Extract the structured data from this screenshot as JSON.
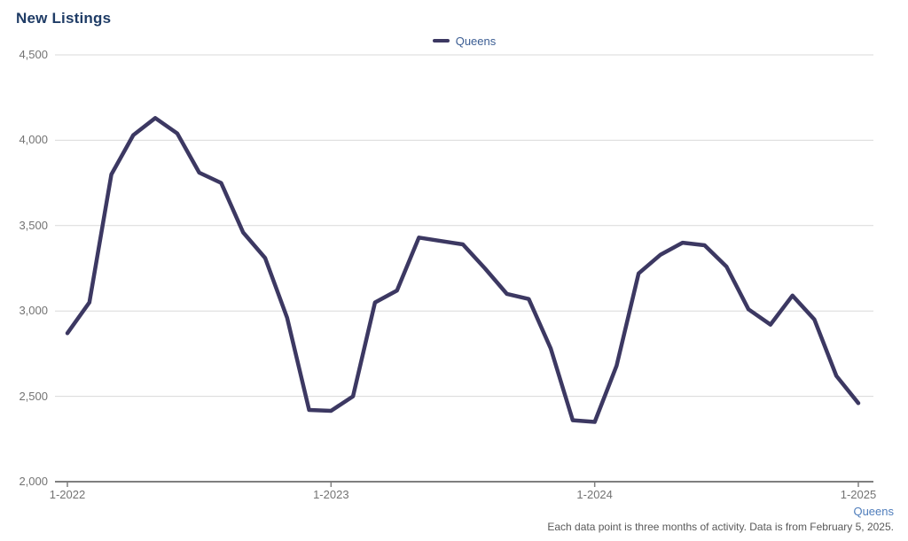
{
  "page": {
    "title": "New Listings"
  },
  "legend": {
    "items": [
      {
        "label": "Queens",
        "swatch_color": "#3c3862"
      }
    ]
  },
  "footer": {
    "series_link": "Queens",
    "note": "Each data point is three months of activity. Data is from February 5, 2025."
  },
  "colors": {
    "line": "#3c3862",
    "title_text": "#1f3c66",
    "legend_text": "#3b5d93",
    "link_text": "#4f7dbb",
    "axis_text": "#737373",
    "note_text": "#595959",
    "gridline": "#d9d9d9",
    "axis_line": "#7f7f7f",
    "background": "#ffffff"
  },
  "chart_data": {
    "type": "line",
    "title": "New Listings",
    "xlabel": "",
    "ylabel": "",
    "grid": true,
    "legend_position": "top-center",
    "ylim": [
      2000,
      4500
    ],
    "y_ticks": [
      4500,
      4000,
      3500,
      3000,
      2500,
      2000
    ],
    "y_tick_labels": [
      "4,500",
      "4,000",
      "3,500",
      "3,000",
      "2,500",
      "2,000"
    ],
    "x_tick_indices": [
      0,
      12,
      24,
      36
    ],
    "x_tick_labels": [
      "1-2022",
      "1-2023",
      "1-2024",
      "1-2025"
    ],
    "x": [
      "1-2022",
      "2-2022",
      "3-2022",
      "4-2022",
      "5-2022",
      "6-2022",
      "7-2022",
      "8-2022",
      "9-2022",
      "10-2022",
      "11-2022",
      "12-2022",
      "1-2023",
      "2-2023",
      "3-2023",
      "4-2023",
      "5-2023",
      "6-2023",
      "7-2023",
      "8-2023",
      "9-2023",
      "10-2023",
      "11-2023",
      "12-2023",
      "1-2024",
      "2-2024",
      "3-2024",
      "4-2024",
      "5-2024",
      "6-2024",
      "7-2024",
      "8-2024",
      "9-2024",
      "10-2024",
      "11-2024",
      "12-2024",
      "1-2025"
    ],
    "series": [
      {
        "name": "Queens",
        "color": "#3c3862",
        "values": [
          2870,
          3050,
          3800,
          4030,
          4130,
          4040,
          3810,
          3750,
          3460,
          3310,
          2960,
          2420,
          2415,
          2500,
          3050,
          3120,
          3430,
          3410,
          3390,
          3250,
          3100,
          3070,
          2780,
          2360,
          2350,
          2680,
          3220,
          3330,
          3400,
          3385,
          3260,
          3010,
          2920,
          3090,
          2950,
          2620,
          2460
        ]
      }
    ]
  }
}
